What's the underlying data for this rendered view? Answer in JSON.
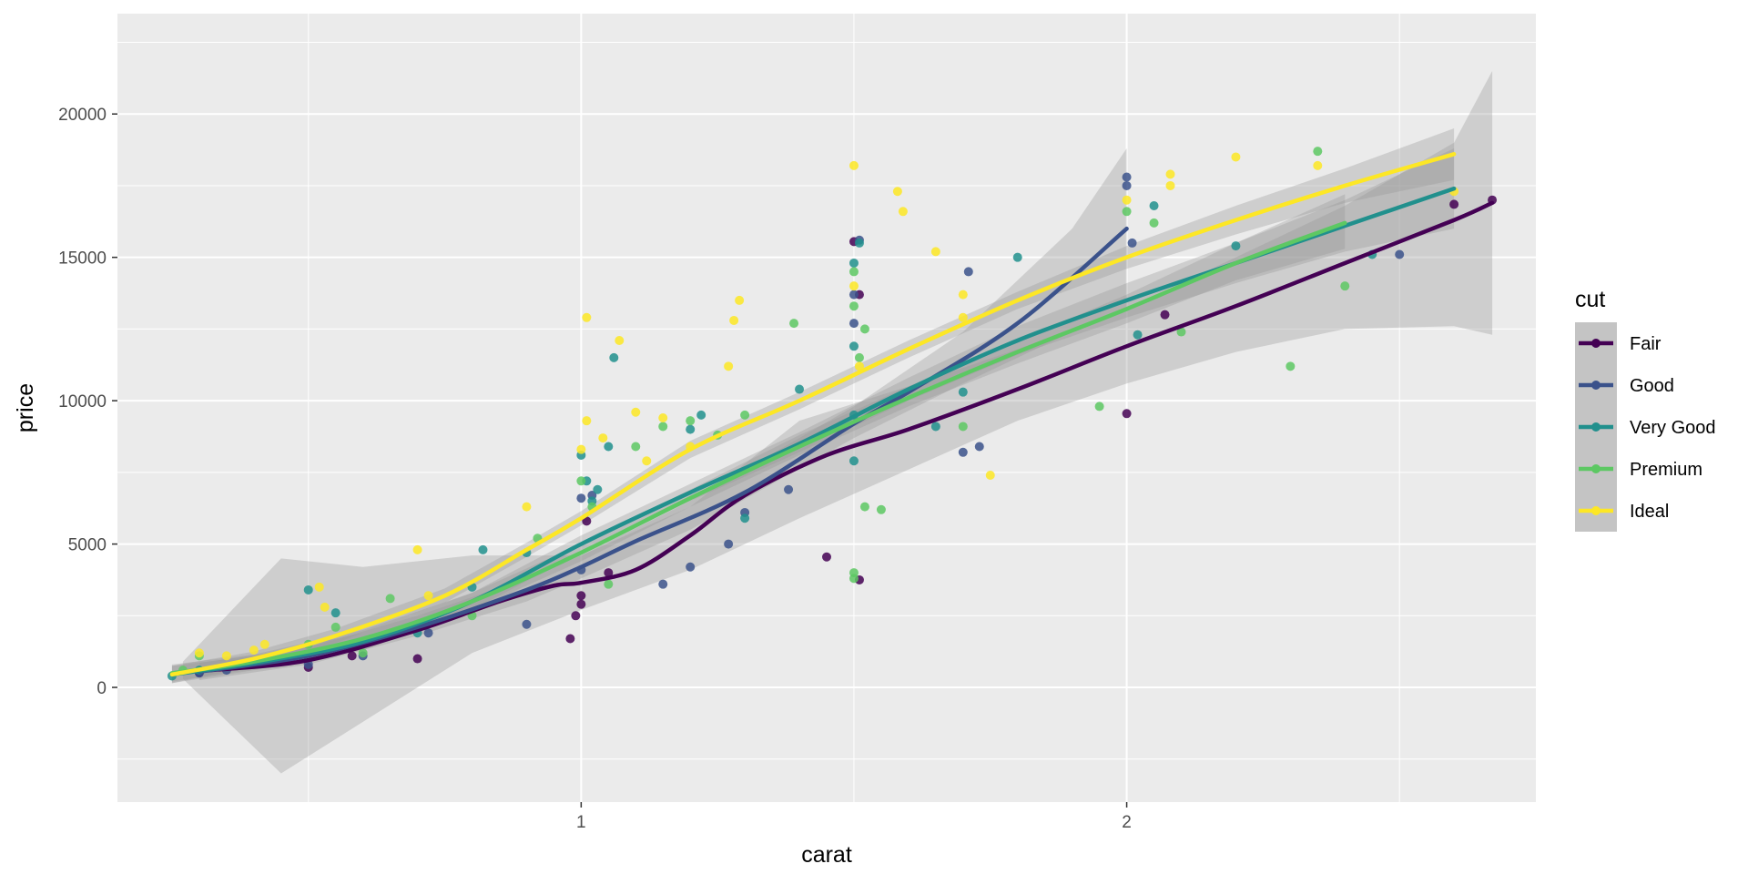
{
  "chart_data": {
    "type": "scatter",
    "xlabel": "carat",
    "ylabel": "price",
    "xlim": [
      0.15,
      2.75
    ],
    "ylim": [
      -4000,
      23500
    ],
    "x_ticks": [
      1,
      2
    ],
    "x_tick_labels": [
      "1",
      "2"
    ],
    "x_minor_ticks": [
      0.5,
      1.5,
      2.5
    ],
    "y_ticks": [
      0,
      5000,
      10000,
      15000,
      20000
    ],
    "y_tick_labels": [
      "0",
      "5000",
      "10000",
      "15000",
      "20000"
    ],
    "y_minor_ticks": [
      -2500,
      2500,
      7500,
      12500,
      17500,
      22500
    ],
    "grid": true,
    "legend": {
      "title": "cut",
      "position": "right",
      "entries": [
        "Fair",
        "Good",
        "Very Good",
        "Premium",
        "Ideal"
      ]
    },
    "smoothing": "loess with gray confidence band",
    "series": [
      {
        "name": "Fair",
        "color": "#440154",
        "points": [
          [
            0.3,
            520
          ],
          [
            0.5,
            700
          ],
          [
            0.58,
            1100
          ],
          [
            0.7,
            1000
          ],
          [
            0.98,
            1700
          ],
          [
            0.99,
            2500
          ],
          [
            1.0,
            2900
          ],
          [
            1.0,
            3200
          ],
          [
            1.05,
            4000
          ],
          [
            1.01,
            5800
          ],
          [
            1.45,
            4550
          ],
          [
            1.51,
            3750
          ],
          [
            1.5,
            15550
          ],
          [
            1.51,
            13700
          ],
          [
            2.0,
            9550
          ],
          [
            2.07,
            13000
          ],
          [
            2.6,
            16850
          ],
          [
            2.67,
            17000
          ]
        ],
        "curve": [
          [
            0.32,
            600
          ],
          [
            0.5,
            950
          ],
          [
            0.7,
            2000
          ],
          [
            0.85,
            3000
          ],
          [
            0.95,
            3550
          ],
          [
            1.0,
            3650
          ],
          [
            1.1,
            4100
          ],
          [
            1.2,
            5300
          ],
          [
            1.3,
            6700
          ],
          [
            1.45,
            8100
          ],
          [
            1.6,
            9000
          ],
          [
            1.8,
            10400
          ],
          [
            2.0,
            11900
          ],
          [
            2.2,
            13300
          ],
          [
            2.4,
            14800
          ],
          [
            2.6,
            16300
          ],
          [
            2.67,
            16900
          ]
        ],
        "band": [
          [
            0.27,
            300,
            900
          ],
          [
            0.45,
            -3000,
            4500
          ],
          [
            0.6,
            -1200,
            4200
          ],
          [
            0.8,
            1200,
            4600
          ],
          [
            1.0,
            2700,
            4600
          ],
          [
            1.2,
            4100,
            6300
          ],
          [
            1.4,
            5900,
            9300
          ],
          [
            1.6,
            7600,
            10500
          ],
          [
            1.8,
            9300,
            11800
          ],
          [
            2.0,
            10600,
            13200
          ],
          [
            2.2,
            11700,
            15000
          ],
          [
            2.4,
            12500,
            16800
          ],
          [
            2.6,
            12600,
            19000
          ],
          [
            2.67,
            12300,
            21500
          ]
        ]
      },
      {
        "name": "Good",
        "color": "#3b528b",
        "points": [
          [
            0.3,
            500
          ],
          [
            0.35,
            600
          ],
          [
            0.5,
            800
          ],
          [
            0.6,
            1100
          ],
          [
            0.72,
            1900
          ],
          [
            0.9,
            2200
          ],
          [
            1.0,
            4100
          ],
          [
            1.02,
            6700
          ],
          [
            1.0,
            6600
          ],
          [
            1.15,
            3600
          ],
          [
            1.2,
            4200
          ],
          [
            1.27,
            5000
          ],
          [
            1.3,
            6100
          ],
          [
            1.38,
            6900
          ],
          [
            1.5,
            12700
          ],
          [
            1.5,
            13700
          ],
          [
            1.51,
            15600
          ],
          [
            1.71,
            14500
          ],
          [
            1.7,
            8200
          ],
          [
            1.73,
            8400
          ],
          [
            2.0,
            17800
          ],
          [
            2.0,
            17500
          ],
          [
            2.01,
            15500
          ],
          [
            2.5,
            15100
          ]
        ],
        "curve": [
          [
            0.3,
            550
          ],
          [
            0.5,
            1100
          ],
          [
            0.7,
            2100
          ],
          [
            0.9,
            3400
          ],
          [
            1.0,
            4200
          ],
          [
            1.1,
            5100
          ],
          [
            1.3,
            6800
          ],
          [
            1.5,
            9200
          ],
          [
            1.6,
            10300
          ],
          [
            1.8,
            12700
          ],
          [
            2.0,
            16000
          ]
        ],
        "band": [
          [
            0.3,
            250,
            850
          ],
          [
            0.5,
            800,
            1400
          ],
          [
            0.7,
            1800,
            2500
          ],
          [
            0.9,
            3000,
            3800
          ],
          [
            1.0,
            3800,
            4600
          ],
          [
            1.2,
            5500,
            6500
          ],
          [
            1.5,
            8700,
            9800
          ],
          [
            1.7,
            10600,
            12400
          ],
          [
            1.9,
            12400,
            16000
          ],
          [
            2.0,
            13200,
            18800
          ]
        ]
      },
      {
        "name": "Very Good",
        "color": "#21908d",
        "points": [
          [
            0.25,
            400
          ],
          [
            0.3,
            600
          ],
          [
            0.4,
            900
          ],
          [
            0.5,
            3400
          ],
          [
            0.55,
            2600
          ],
          [
            0.7,
            1900
          ],
          [
            0.8,
            3500
          ],
          [
            0.82,
            4800
          ],
          [
            0.9,
            4700
          ],
          [
            1.0,
            8100
          ],
          [
            1.01,
            7200
          ],
          [
            1.02,
            6500
          ],
          [
            1.03,
            6900
          ],
          [
            1.05,
            8400
          ],
          [
            1.06,
            11500
          ],
          [
            1.2,
            9000
          ],
          [
            1.22,
            9500
          ],
          [
            1.3,
            5900
          ],
          [
            1.4,
            10400
          ],
          [
            1.5,
            14800
          ],
          [
            1.51,
            15500
          ],
          [
            1.5,
            11900
          ],
          [
            1.5,
            9500
          ],
          [
            1.5,
            7900
          ],
          [
            1.65,
            9100
          ],
          [
            1.7,
            10300
          ],
          [
            1.8,
            15000
          ],
          [
            2.02,
            12300
          ],
          [
            2.05,
            16800
          ],
          [
            2.2,
            15400
          ],
          [
            2.45,
            15100
          ]
        ],
        "curve": [
          [
            0.25,
            450
          ],
          [
            0.4,
            850
          ],
          [
            0.6,
            1600
          ],
          [
            0.8,
            3000
          ],
          [
            1.0,
            5000
          ],
          [
            1.2,
            6800
          ],
          [
            1.4,
            8500
          ],
          [
            1.6,
            10400
          ],
          [
            1.8,
            12100
          ],
          [
            2.0,
            13500
          ],
          [
            2.2,
            14800
          ],
          [
            2.4,
            16100
          ],
          [
            2.6,
            17400
          ]
        ],
        "band": [
          [
            0.25,
            150,
            750
          ],
          [
            0.4,
            600,
            1100
          ],
          [
            0.6,
            1300,
            1900
          ],
          [
            0.8,
            2700,
            3300
          ],
          [
            1.0,
            4700,
            5300
          ],
          [
            1.2,
            6500,
            7100
          ],
          [
            1.4,
            8200,
            8900
          ],
          [
            1.6,
            10000,
            10800
          ],
          [
            1.8,
            11600,
            12600
          ],
          [
            2.0,
            12900,
            14100
          ],
          [
            2.2,
            14100,
            15500
          ],
          [
            2.4,
            15200,
            17000
          ],
          [
            2.6,
            16000,
            18800
          ]
        ]
      },
      {
        "name": "Premium",
        "color": "#5dc863",
        "points": [
          [
            0.27,
            600
          ],
          [
            0.3,
            1100
          ],
          [
            0.4,
            800
          ],
          [
            0.5,
            1500
          ],
          [
            0.55,
            2100
          ],
          [
            0.6,
            1200
          ],
          [
            0.65,
            3100
          ],
          [
            0.8,
            2500
          ],
          [
            0.92,
            5200
          ],
          [
            1.0,
            7200
          ],
          [
            1.02,
            6300
          ],
          [
            1.05,
            3600
          ],
          [
            1.1,
            8400
          ],
          [
            1.15,
            9100
          ],
          [
            1.2,
            9300
          ],
          [
            1.25,
            8800
          ],
          [
            1.3,
            9500
          ],
          [
            1.39,
            12700
          ],
          [
            1.5,
            14500
          ],
          [
            1.5,
            13300
          ],
          [
            1.51,
            11500
          ],
          [
            1.52,
            12500
          ],
          [
            1.5,
            4000
          ],
          [
            1.5,
            3800
          ],
          [
            1.52,
            6300
          ],
          [
            1.55,
            6200
          ],
          [
            1.7,
            9100
          ],
          [
            1.95,
            9800
          ],
          [
            2.0,
            16600
          ],
          [
            2.05,
            16200
          ],
          [
            2.1,
            12400
          ],
          [
            2.3,
            11200
          ],
          [
            2.35,
            18700
          ],
          [
            2.4,
            14000
          ]
        ],
        "curve": [
          [
            0.25,
            500
          ],
          [
            0.4,
            900
          ],
          [
            0.6,
            1700
          ],
          [
            0.8,
            3000
          ],
          [
            1.0,
            4700
          ],
          [
            1.2,
            6600
          ],
          [
            1.4,
            8400
          ],
          [
            1.6,
            10100
          ],
          [
            1.8,
            11700
          ],
          [
            2.0,
            13200
          ],
          [
            2.2,
            14800
          ],
          [
            2.4,
            16200
          ]
        ],
        "band": [
          [
            0.25,
            200,
            800
          ],
          [
            0.4,
            650,
            1150
          ],
          [
            0.6,
            1400,
            2000
          ],
          [
            0.8,
            2700,
            3300
          ],
          [
            1.0,
            4400,
            5000
          ],
          [
            1.2,
            6300,
            6900
          ],
          [
            1.4,
            8100,
            8800
          ],
          [
            1.6,
            9800,
            10500
          ],
          [
            1.8,
            11300,
            12100
          ],
          [
            2.0,
            12700,
            13700
          ],
          [
            2.2,
            14200,
            15500
          ],
          [
            2.4,
            15300,
            17200
          ]
        ]
      },
      {
        "name": "Ideal",
        "color": "#fde725",
        "points": [
          [
            0.3,
            1200
          ],
          [
            0.35,
            1100
          ],
          [
            0.4,
            1300
          ],
          [
            0.42,
            1500
          ],
          [
            0.52,
            3500
          ],
          [
            0.53,
            2800
          ],
          [
            0.7,
            4800
          ],
          [
            0.72,
            3200
          ],
          [
            0.9,
            6300
          ],
          [
            1.0,
            8300
          ],
          [
            1.01,
            9300
          ],
          [
            1.01,
            12900
          ],
          [
            1.04,
            8700
          ],
          [
            1.07,
            12100
          ],
          [
            1.1,
            9600
          ],
          [
            1.12,
            7900
          ],
          [
            1.15,
            9400
          ],
          [
            1.2,
            8400
          ],
          [
            1.27,
            11200
          ],
          [
            1.28,
            12800
          ],
          [
            1.29,
            13500
          ],
          [
            1.5,
            18200
          ],
          [
            1.5,
            14000
          ],
          [
            1.51,
            11200
          ],
          [
            1.58,
            17300
          ],
          [
            1.59,
            16600
          ],
          [
            1.65,
            15200
          ],
          [
            1.7,
            13700
          ],
          [
            1.7,
            12900
          ],
          [
            1.75,
            7400
          ],
          [
            2.0,
            17000
          ],
          [
            2.08,
            17900
          ],
          [
            2.08,
            17500
          ],
          [
            2.2,
            18500
          ],
          [
            2.35,
            18200
          ],
          [
            2.6,
            17300
          ]
        ],
        "curve": [
          [
            0.25,
            450
          ],
          [
            0.4,
            1000
          ],
          [
            0.55,
            1800
          ],
          [
            0.75,
            3200
          ],
          [
            0.9,
            4800
          ],
          [
            1.0,
            5900
          ],
          [
            1.2,
            8300
          ],
          [
            1.4,
            10000
          ],
          [
            1.6,
            11800
          ],
          [
            1.8,
            13500
          ],
          [
            2.0,
            15000
          ],
          [
            2.2,
            16300
          ],
          [
            2.4,
            17500
          ],
          [
            2.6,
            18600
          ]
        ],
        "band": [
          [
            0.25,
            150,
            750
          ],
          [
            0.4,
            750,
            1250
          ],
          [
            0.55,
            1550,
            2050
          ],
          [
            0.75,
            2950,
            3450
          ],
          [
            0.9,
            4550,
            5050
          ],
          [
            1.0,
            5650,
            6150
          ],
          [
            1.2,
            8000,
            8600
          ],
          [
            1.4,
            9700,
            10300
          ],
          [
            1.6,
            11500,
            12100
          ],
          [
            1.8,
            13200,
            13800
          ],
          [
            2.0,
            14600,
            15400
          ],
          [
            2.2,
            15800,
            16800
          ],
          [
            2.4,
            16900,
            18100
          ],
          [
            2.6,
            17700,
            19500
          ]
        ]
      }
    ]
  }
}
